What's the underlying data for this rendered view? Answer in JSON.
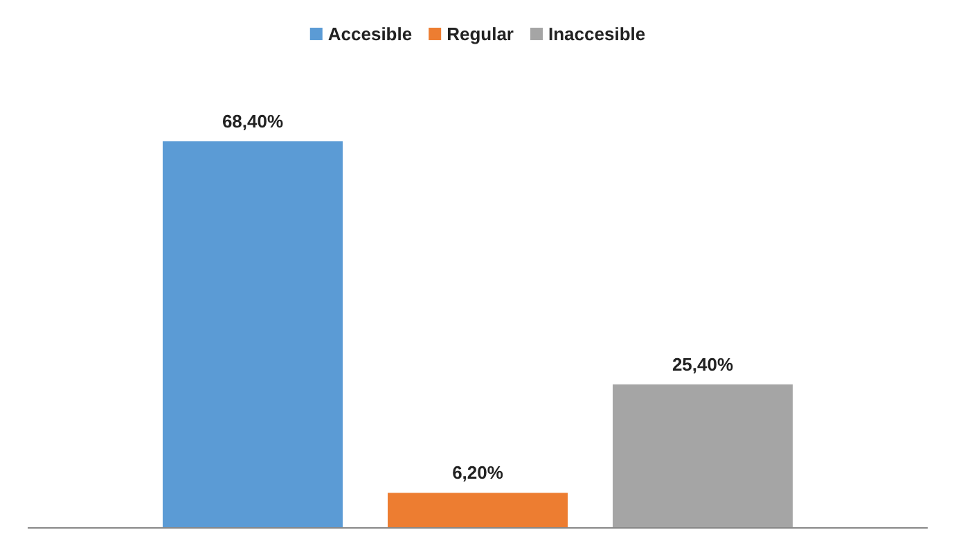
{
  "chart_data": {
    "type": "bar",
    "categories": [
      null
    ],
    "series": [
      {
        "name": "Accesible",
        "color": "#5b9bd5",
        "values": [
          68.4
        ],
        "value_labels": [
          "68,40%"
        ]
      },
      {
        "name": "Regular",
        "color": "#ed7d31",
        "values": [
          6.2
        ],
        "value_labels": [
          "6,20%"
        ]
      },
      {
        "name": "Inaccesible",
        "color": "#a5a5a5",
        "values": [
          25.4
        ],
        "value_labels": [
          "25,40%"
        ]
      }
    ],
    "legend": "top"
  }
}
